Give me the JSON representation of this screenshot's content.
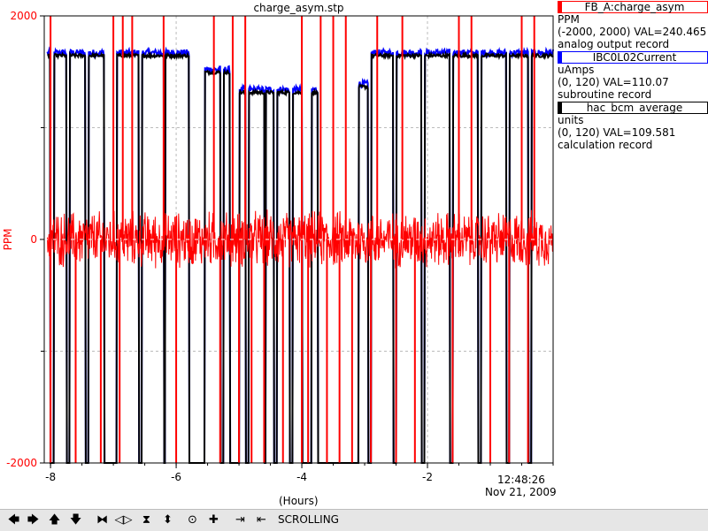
{
  "chart_data": {
    "type": "line",
    "title": "charge_asym.stp",
    "xlabel": "(Hours)",
    "ylabel": "PPM",
    "ylim": [
      -2000,
      2000
    ],
    "y_ticks": [
      "2000",
      "0",
      "-2000"
    ],
    "xlim": [
      -8.1,
      0
    ],
    "x_ticks": [
      -8,
      -6,
      -4,
      -2
    ],
    "x_tick_labels": [
      "-8",
      "-6",
      "-4",
      "-2"
    ],
    "time_label": "12:48:26",
    "date_label": "Nov 21, 2009",
    "grid": true,
    "legend_placement": "right",
    "series": [
      {
        "name": "FB_A:charge_asym",
        "color": "#ff0000",
        "units": "PPM",
        "range": "(-2000, 2000) VAL=240.465",
        "record": "analog output record",
        "baseline": 0,
        "noise_amplitude": 180,
        "spikes_up": [
          -8.0,
          -7.0,
          -6.85,
          -6.7,
          -6.2,
          -5.4,
          -5.1,
          -4.9,
          -4.0,
          -3.7,
          -3.5,
          -3.3,
          -2.8,
          -2.4,
          -1.5,
          -1.3,
          -0.5,
          -0.3
        ],
        "spikes_down": [
          -8.0,
          -7.6,
          -7.2,
          -6.9,
          -6.0,
          -5.3,
          -5.0,
          -4.8,
          -4.6,
          -4.3,
          -4.0,
          -3.9,
          -3.6,
          -3.4,
          -3.2,
          -2.9,
          -2.5,
          -2.2,
          -1.6,
          -1.0,
          -0.7,
          -0.4
        ]
      },
      {
        "name": "IBC0L02Current",
        "color": "#0000ff",
        "units": "uAmps",
        "range": "(0, 120) VAL=110.07",
        "record": "subroutine record"
      },
      {
        "name": "hac_bcm_average",
        "color": "#000000",
        "units": "units",
        "range": "(0, 120) VAL=109.581",
        "record": "calculation record"
      }
    ],
    "current_levels": [
      {
        "x0": -8.05,
        "x1": -5.6,
        "y": 1660
      },
      {
        "x0": -5.6,
        "x1": -5.05,
        "y": 1510
      },
      {
        "x0": -5.05,
        "x1": -3.35,
        "y": 1330
      },
      {
        "x0": -3.35,
        "x1": -2.9,
        "y": 1380
      },
      {
        "x0": -2.9,
        "x1": 0,
        "y": 1660
      }
    ],
    "current_drops": [
      [
        -8.0,
        -7.95
      ],
      [
        -7.75,
        -7.7
      ],
      [
        -7.45,
        -7.4
      ],
      [
        -7.15,
        -6.95
      ],
      [
        -6.6,
        -6.55
      ],
      [
        -6.2,
        -6.18
      ],
      [
        -5.8,
        -5.55
      ],
      [
        -5.3,
        -5.25
      ],
      [
        -5.15,
        -5.0
      ],
      [
        -4.9,
        -4.85
      ],
      [
        -4.6,
        -4.58
      ],
      [
        -4.45,
        -4.4
      ],
      [
        -4.2,
        -4.15
      ],
      [
        -4.0,
        -3.85
      ],
      [
        -3.75,
        -3.1
      ],
      [
        -2.95,
        -2.9
      ],
      [
        -2.55,
        -2.5
      ],
      [
        -2.1,
        -2.05
      ],
      [
        -1.65,
        -1.6
      ],
      [
        -1.2,
        -1.15
      ],
      [
        -0.75,
        -0.7
      ],
      [
        -0.4,
        -0.35
      ]
    ]
  },
  "toolbar": {
    "status": "SCROLLING",
    "buttons": [
      {
        "name": "scroll-left-button",
        "icon": "arrow-left-icon",
        "glyph": "🡄"
      },
      {
        "name": "scroll-right-button",
        "icon": "arrow-right-icon",
        "glyph": "🡆"
      },
      {
        "name": "scroll-up-button",
        "icon": "arrow-up-icon",
        "glyph": "🡅"
      },
      {
        "name": "scroll-down-button",
        "icon": "arrow-down-icon",
        "glyph": "🡇"
      },
      {
        "name": "zoom-in-x-button",
        "icon": "zoom-in-x-icon",
        "glyph": "⧓"
      },
      {
        "name": "zoom-out-x-button",
        "icon": "zoom-out-x-icon",
        "glyph": "◁▷"
      },
      {
        "name": "zoom-in-y-button",
        "icon": "zoom-in-y-icon",
        "glyph": "⧗"
      },
      {
        "name": "zoom-out-y-button",
        "icon": "zoom-out-y-icon",
        "glyph": "⬍"
      },
      {
        "name": "autoscale-button",
        "icon": "autoscale-icon",
        "glyph": "⊙"
      },
      {
        "name": "add-pv-button",
        "icon": "plus-icon",
        "glyph": "✚"
      },
      {
        "name": "toggle-scroll-button",
        "icon": "scroll-mode-icon",
        "glyph": "⇥"
      },
      {
        "name": "undo-zoom-button",
        "icon": "undo-icon",
        "glyph": "⇤"
      }
    ]
  }
}
